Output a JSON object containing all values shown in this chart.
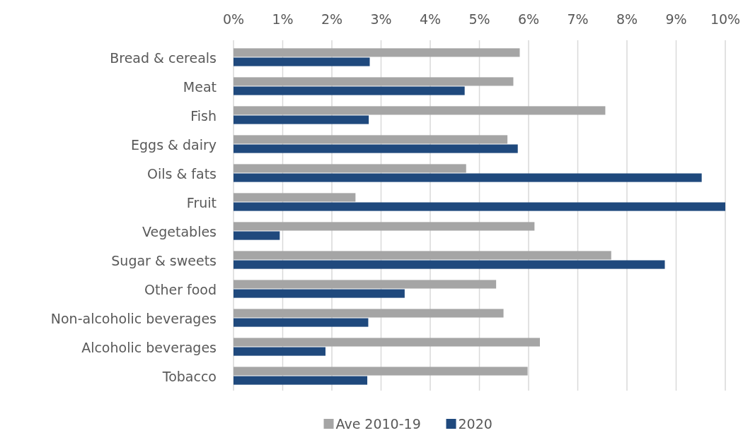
{
  "chart_data": {
    "type": "bar",
    "orientation": "horizontal",
    "categories": [
      "Bread & cereals",
      "Meat",
      "Fish",
      "Eggs & dairy",
      "Oils & fats",
      "Fruit",
      "Vegetables",
      "Sugar & sweets",
      "Other food",
      "Non-alcoholic beverages",
      "Alcoholic beverages",
      "Tobacco"
    ],
    "series": [
      {
        "name": "Ave 2010-19",
        "color": "#a5a5a5",
        "values": [
          5.82,
          5.69,
          7.56,
          5.57,
          4.73,
          2.48,
          6.12,
          7.68,
          5.34,
          5.49,
          6.23,
          5.98
        ]
      },
      {
        "name": "2020",
        "color": "#1f497d",
        "values": [
          2.77,
          4.7,
          2.75,
          5.78,
          9.52,
          10.0,
          0.94,
          8.77,
          3.48,
          2.74,
          1.87,
          2.72
        ]
      }
    ],
    "xlim": [
      0,
      10
    ],
    "xticks": [
      {
        "value": 0,
        "label": "0%"
      },
      {
        "value": 1,
        "label": "1%"
      },
      {
        "value": 2,
        "label": "2%"
      },
      {
        "value": 3,
        "label": "3%"
      },
      {
        "value": 4,
        "label": "4%"
      },
      {
        "value": 5,
        "label": "5%"
      },
      {
        "value": 6,
        "label": "6%"
      },
      {
        "value": 7,
        "label": "7%"
      },
      {
        "value": 8,
        "label": "8%"
      },
      {
        "value": 9,
        "label": "9%"
      },
      {
        "value": 10,
        "label": "10%"
      }
    ],
    "grid": "x",
    "legend": "bottom"
  }
}
